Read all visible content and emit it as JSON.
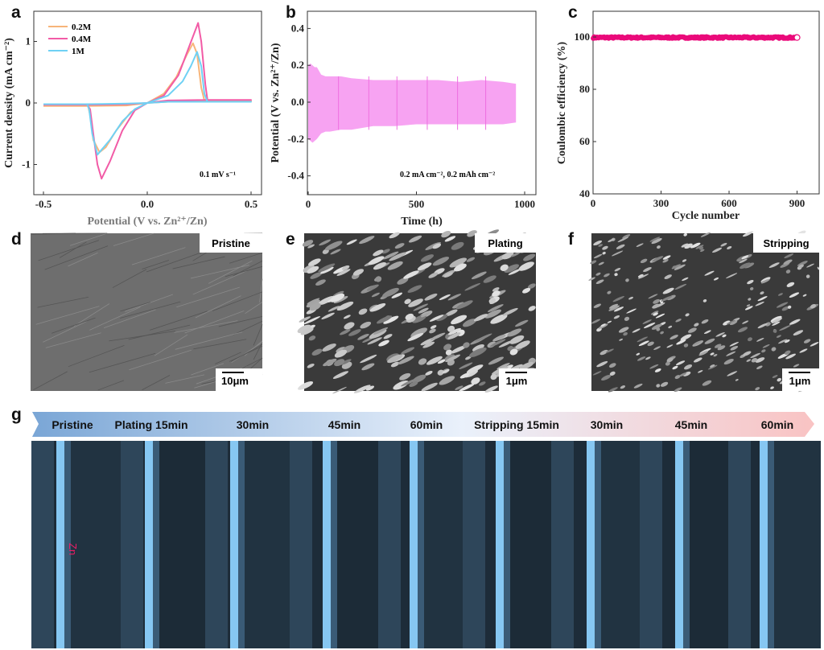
{
  "panel_letters": [
    "a",
    "b",
    "c",
    "d",
    "e",
    "f",
    "g"
  ],
  "chart_data": [
    {
      "type": "line",
      "title": "",
      "xlabel": "Potential (V vs. Zn²⁺/Zn)",
      "ylabel": "Current density (mA cm⁻²)",
      "xlim": [
        -0.55,
        0.55
      ],
      "ylim": [
        -1.5,
        1.5
      ],
      "xticks": [
        "-0.5",
        "0.0",
        "0.5"
      ],
      "xtick_values": [
        -0.5,
        0,
        0.5
      ],
      "yticks": [
        "-1",
        "0",
        "1"
      ],
      "ytick_values": [
        -1,
        0,
        1
      ],
      "legend_position": "top-left",
      "annotation": "0.1 mV s⁻¹",
      "series": [
        {
          "name": "0.2M",
          "color": "#f7b57a",
          "points": [
            [
              -0.5,
              -0.05
            ],
            [
              -0.3,
              -0.05
            ],
            [
              -0.1,
              -0.04
            ],
            [
              0,
              0
            ],
            [
              0.08,
              0.15
            ],
            [
              0.14,
              0.42
            ],
            [
              0.19,
              0.78
            ],
            [
              0.22,
              0.97
            ],
            [
              0.24,
              0.8
            ],
            [
              0.26,
              0.25
            ],
            [
              0.275,
              0.04
            ],
            [
              0.5,
              0.03
            ],
            [
              0.3,
              0.03
            ],
            [
              0.1,
              0.02
            ],
            [
              0,
              0
            ],
            [
              -0.08,
              -0.15
            ],
            [
              -0.15,
              -0.45
            ],
            [
              -0.2,
              -0.72
            ],
            [
              -0.23,
              -0.8
            ],
            [
              -0.26,
              -0.6
            ],
            [
              -0.275,
              -0.2
            ],
            [
              -0.285,
              -0.05
            ],
            [
              -0.5,
              -0.05
            ]
          ]
        },
        {
          "name": "0.4M",
          "color": "#f25ba6",
          "points": [
            [
              -0.5,
              -0.03
            ],
            [
              -0.3,
              -0.03
            ],
            [
              -0.1,
              -0.02
            ],
            [
              0,
              0
            ],
            [
              0.08,
              0.12
            ],
            [
              0.15,
              0.45
            ],
            [
              0.2,
              0.9
            ],
            [
              0.245,
              1.3
            ],
            [
              0.26,
              1.0
            ],
            [
              0.28,
              0.3
            ],
            [
              0.29,
              0.05
            ],
            [
              0.5,
              0.05
            ],
            [
              0.3,
              0.05
            ],
            [
              0.1,
              0.04
            ],
            [
              0,
              0
            ],
            [
              -0.06,
              -0.12
            ],
            [
              -0.12,
              -0.45
            ],
            [
              -0.18,
              -0.95
            ],
            [
              -0.22,
              -1.23
            ],
            [
              -0.24,
              -1.0
            ],
            [
              -0.26,
              -0.5
            ],
            [
              -0.275,
              -0.1
            ],
            [
              -0.29,
              -0.03
            ],
            [
              -0.5,
              -0.03
            ]
          ]
        },
        {
          "name": "1M",
          "color": "#6fd1f4",
          "points": [
            [
              -0.5,
              -0.02
            ],
            [
              -0.3,
              -0.02
            ],
            [
              -0.1,
              -0.01
            ],
            [
              0,
              0
            ],
            [
              0.1,
              0.12
            ],
            [
              0.17,
              0.35
            ],
            [
              0.21,
              0.6
            ],
            [
              0.24,
              0.83
            ],
            [
              0.26,
              0.6
            ],
            [
              0.275,
              0.15
            ],
            [
              0.29,
              0.02
            ],
            [
              0.5,
              0.02
            ],
            [
              0.3,
              0.02
            ],
            [
              0.1,
              0.02
            ],
            [
              0,
              0
            ],
            [
              -0.06,
              -0.1
            ],
            [
              -0.12,
              -0.3
            ],
            [
              -0.18,
              -0.6
            ],
            [
              -0.24,
              -0.84
            ],
            [
              -0.265,
              -0.5
            ],
            [
              -0.28,
              -0.1
            ],
            [
              -0.29,
              -0.02
            ],
            [
              -0.5,
              -0.02
            ]
          ]
        }
      ]
    },
    {
      "type": "area",
      "xlabel": "Time (h)",
      "ylabel": "Potential (V vs. Zn²⁺/Zn)",
      "xlim": [
        0,
        1050
      ],
      "ylim": [
        -0.5,
        0.5
      ],
      "xticks": [
        "0",
        "500",
        "1000"
      ],
      "xtick_values": [
        0,
        500,
        1000
      ],
      "yticks": [
        "0.4",
        "0.2",
        "0.0",
        "-0.2",
        "-0.4"
      ],
      "ytick_values": [
        0.4,
        0.2,
        0,
        -0.2,
        -0.4
      ],
      "annotation": "0.2 mA cm⁻², 0.2 mAh cm⁻²",
      "color": "#f7a3f2",
      "time": [
        0,
        10,
        20,
        30,
        40,
        60,
        80,
        100,
        150,
        200,
        300,
        400,
        500,
        600,
        700,
        800,
        900,
        960
      ],
      "upper": [
        0.2,
        0.21,
        0.2,
        0.19,
        0.19,
        0.15,
        0.14,
        0.14,
        0.14,
        0.13,
        0.12,
        0.12,
        0.12,
        0.12,
        0.11,
        0.12,
        0.11,
        0.1
      ],
      "lower": [
        -0.2,
        -0.21,
        -0.22,
        -0.21,
        -0.2,
        -0.17,
        -0.16,
        -0.16,
        -0.15,
        -0.15,
        -0.13,
        -0.13,
        -0.12,
        -0.12,
        -0.12,
        -0.12,
        -0.12,
        -0.11
      ],
      "interruption_times": [
        140,
        280,
        410,
        550,
        690,
        820
      ]
    },
    {
      "type": "scatter",
      "xlabel": "Cycle number",
      "ylabel": "Coulombic efficiency (%)",
      "xlim": [
        0,
        1000
      ],
      "ylim": [
        40,
        110
      ],
      "xticks": [
        "0",
        "300",
        "600",
        "900"
      ],
      "xtick_values": [
        0,
        300,
        600,
        900
      ],
      "yticks": [
        "40",
        "60",
        "80",
        "100"
      ],
      "ytick_values": [
        40,
        60,
        80,
        100
      ],
      "color": "#ea0a7a",
      "cycles_range": [
        1,
        900
      ],
      "efficiency_value": 99.8
    }
  ],
  "sem": [
    {
      "label": "Pristine",
      "scale": "10μm"
    },
    {
      "label": "Plating",
      "scale": "1μm"
    },
    {
      "label": "Stripping",
      "scale": "1μm"
    }
  ],
  "timeline": {
    "stages": [
      "Pristine",
      "Plating 15min",
      "30min",
      "45min",
      "60min",
      "Stripping 15min",
      "30min",
      "45min",
      "60min"
    ],
    "zn_label": "Zn"
  }
}
